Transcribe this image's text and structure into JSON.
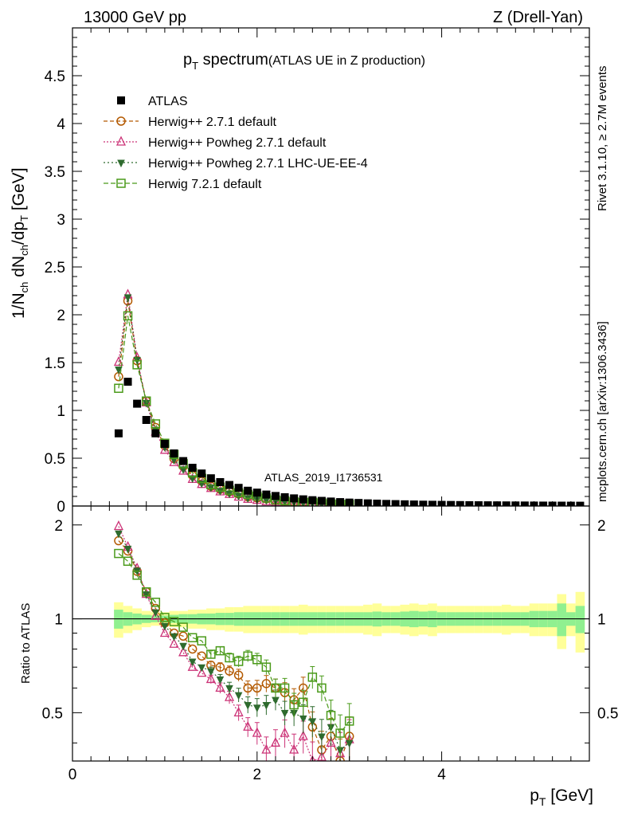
{
  "header": {
    "left": "13000 GeV pp",
    "right": "Z (Drell-Yan)"
  },
  "title": {
    "main": "p",
    "main_sub": "T",
    "main_rest": " spectrum",
    "paren": "(ATLAS UE in Z production)"
  },
  "watermark": "ATLAS_2019_I1736531",
  "side_texts": {
    "rivet": "Rivet 3.1.10, ≥ 2.7M events",
    "mcplots": "mcplots.cern.ch [arXiv:1306.3436]"
  },
  "axes": {
    "top_ylabel": "1/N_ch dN_ch/dp_T [GeV]",
    "bottom_ylabel": "Ratio to ATLAS",
    "xlabel": "p_T [GeV]"
  },
  "colors": {
    "atlas": "#000000",
    "herwig_default": "#b35900",
    "powheg_default": "#cc3377",
    "powheg_ue": "#2e6b2e",
    "herwig721": "#4a9a1a",
    "band_inner": "#90f090",
    "band_outer": "#ffff99"
  },
  "chart_data": {
    "type": "scatter",
    "title": "p_T spectrum (ATLAS UE in Z production)",
    "xlim": [
      0,
      5.6
    ],
    "ylim_top": [
      0,
      5.0
    ],
    "ylim_ratio": [
      0.35,
      2.3
    ],
    "x_ticks": [
      "0",
      "2",
      "4"
    ],
    "y_ticks_top": [
      "0",
      "0.5",
      "1",
      "1.5",
      "2",
      "2.5",
      "3",
      "3.5",
      "4",
      "4.5"
    ],
    "y_ticks_ratio": [
      "0.5",
      "1",
      "2"
    ],
    "legend": [
      {
        "id": "atlas",
        "label": "ATLAS"
      },
      {
        "id": "herwig_default",
        "label": "Herwig++ 2.7.1 default"
      },
      {
        "id": "powheg_default",
        "label": "Herwig++ Powheg 2.7.1 default"
      },
      {
        "id": "powheg_ue",
        "label": "Herwig++ Powheg 2.7.1 LHC-UE-EE-4"
      },
      {
        "id": "herwig721",
        "label": "Herwig 7.2.1 default"
      }
    ],
    "atlas_x": [
      0.5,
      0.6,
      0.7,
      0.8,
      0.9,
      1.0,
      1.1,
      1.2,
      1.3,
      1.4,
      1.5,
      1.6,
      1.7,
      1.8,
      1.9,
      2.0,
      2.1,
      2.2,
      2.3,
      2.4,
      2.5,
      2.6,
      2.7,
      2.8,
      2.9,
      3.0
    ],
    "atlas_y": [
      0.76,
      1.3,
      1.07,
      0.9,
      0.76,
      0.65,
      0.55,
      0.47,
      0.4,
      0.34,
      0.29,
      0.25,
      0.22,
      0.19,
      0.16,
      0.14,
      0.12,
      0.105,
      0.092,
      0.08,
      0.07,
      0.061,
      0.054,
      0.047,
      0.041,
      0.036
    ],
    "atlas_tail_x": [
      3.1,
      3.2,
      3.3,
      3.4,
      3.5,
      3.6,
      3.7,
      3.8,
      3.9,
      4.0,
      4.1,
      4.2,
      4.3,
      4.4,
      4.5,
      4.6,
      4.7,
      4.8,
      4.9,
      5.0,
      5.1,
      5.2,
      5.3,
      5.4,
      5.5
    ],
    "atlas_tail_y": [
      0.032,
      0.028,
      0.025,
      0.022,
      0.02,
      0.018,
      0.016,
      0.014,
      0.013,
      0.012,
      0.011,
      0.01,
      0.009,
      0.008,
      0.0075,
      0.007,
      0.0065,
      0.006,
      0.0055,
      0.005,
      0.0046,
      0.0042,
      0.0039,
      0.0036,
      0.0033
    ],
    "series": [
      {
        "id": "herwig_default",
        "name": "Herwig++ 2.7.1 default",
        "ratio": [
          1.78,
          1.65,
          1.42,
          1.22,
          1.08,
          0.97,
          0.9,
          0.88,
          0.8,
          0.76,
          0.71,
          0.7,
          0.68,
          0.66,
          0.6,
          0.6,
          0.62,
          0.6,
          0.58,
          0.55,
          0.6,
          0.45,
          0.38,
          0.42,
          0.35,
          0.42
        ]
      },
      {
        "id": "powheg_default",
        "name": "Herwig++ Powheg 2.7.1 default",
        "ratio": [
          1.98,
          1.7,
          1.45,
          1.2,
          1.02,
          0.9,
          0.83,
          0.78,
          0.7,
          0.67,
          0.64,
          0.6,
          0.56,
          0.5,
          0.45,
          0.43,
          0.38,
          0.4,
          0.43,
          0.38,
          0.42,
          0.35,
          0.36,
          0.4,
          0.37,
          0.41
        ]
      },
      {
        "id": "powheg_ue",
        "name": "Herwig++ Powheg 2.7.1 LHC-UE-EE-4",
        "ratio": [
          1.88,
          1.68,
          1.43,
          1.2,
          1.05,
          0.95,
          0.88,
          0.82,
          0.73,
          0.7,
          0.68,
          0.64,
          0.6,
          0.57,
          0.53,
          0.52,
          0.53,
          0.55,
          0.5,
          0.5,
          0.48,
          0.47,
          0.42,
          0.45,
          0.38,
          0.4
        ]
      },
      {
        "id": "herwig721",
        "name": "Herwig 7.2.1 default",
        "ratio": [
          1.62,
          1.53,
          1.38,
          1.22,
          1.13,
          1.01,
          0.98,
          0.94,
          0.87,
          0.85,
          0.77,
          0.79,
          0.75,
          0.73,
          0.76,
          0.74,
          0.7,
          0.6,
          0.6,
          0.53,
          0.54,
          0.65,
          0.6,
          0.49,
          0.43,
          0.47
        ]
      }
    ],
    "band_x_edges": [
      0.45,
      0.55,
      0.65,
      0.75,
      0.85,
      0.95,
      1.05,
      1.15,
      1.25,
      1.35,
      1.45,
      1.55,
      1.65,
      1.75,
      1.85,
      1.95,
      2.05,
      2.15,
      2.25,
      2.35,
      2.45,
      2.55,
      2.65,
      2.75,
      2.85,
      2.95,
      3.05,
      3.15,
      3.25,
      3.35,
      3.45,
      3.55,
      3.65,
      3.75,
      3.85,
      3.95,
      4.05,
      4.15,
      4.25,
      4.35,
      4.45,
      4.55,
      4.65,
      4.75,
      4.85,
      4.95,
      5.05,
      5.15,
      5.25,
      5.35,
      5.45,
      5.55
    ],
    "band_inner": [
      0.07,
      0.05,
      0.04,
      0.03,
      0.025,
      0.025,
      0.03,
      0.035,
      0.035,
      0.04,
      0.04,
      0.045,
      0.045,
      0.05,
      0.05,
      0.05,
      0.05,
      0.05,
      0.05,
      0.05,
      0.05,
      0.05,
      0.05,
      0.05,
      0.05,
      0.05,
      0.05,
      0.05,
      0.055,
      0.05,
      0.05,
      0.055,
      0.06,
      0.055,
      0.06,
      0.05,
      0.05,
      0.05,
      0.05,
      0.05,
      0.05,
      0.05,
      0.05,
      0.05,
      0.05,
      0.06,
      0.06,
      0.06,
      0.12,
      0.05,
      0.1
    ],
    "band_outer": [
      0.13,
      0.1,
      0.08,
      0.06,
      0.05,
      0.05,
      0.06,
      0.06,
      0.07,
      0.07,
      0.08,
      0.08,
      0.09,
      0.09,
      0.1,
      0.1,
      0.1,
      0.1,
      0.1,
      0.1,
      0.11,
      0.1,
      0.1,
      0.1,
      0.1,
      0.1,
      0.1,
      0.11,
      0.12,
      0.1,
      0.1,
      0.11,
      0.12,
      0.11,
      0.12,
      0.1,
      0.1,
      0.1,
      0.1,
      0.1,
      0.1,
      0.1,
      0.11,
      0.1,
      0.1,
      0.12,
      0.12,
      0.12,
      0.2,
      0.12,
      0.22
    ]
  }
}
